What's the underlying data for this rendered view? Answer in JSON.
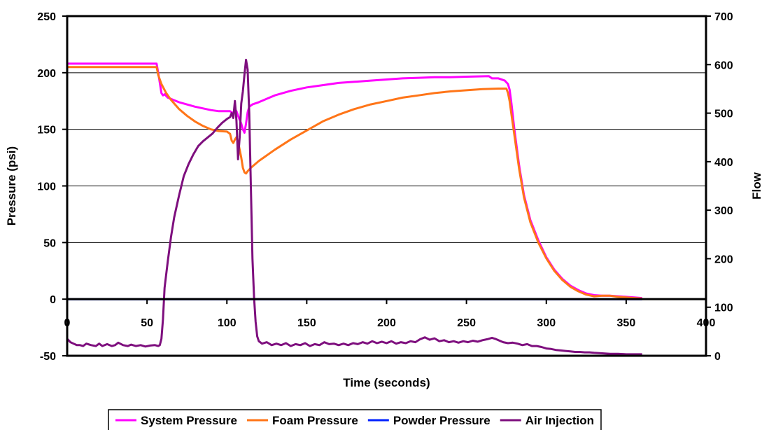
{
  "chart_data": {
    "type": "line",
    "title": "",
    "xlabel": "Time (seconds)",
    "ylabel": "Pressure (psi)",
    "y2label": "Flow",
    "xlim": [
      0,
      400
    ],
    "ylim": [
      -50,
      250
    ],
    "y2lim": [
      0,
      700
    ],
    "xticks": [
      "0",
      "50",
      "100",
      "150",
      "200",
      "250",
      "300",
      "350",
      "400"
    ],
    "yticks": [
      "-50",
      "0",
      "50",
      "100",
      "150",
      "200",
      "250"
    ],
    "y2ticks": [
      "0",
      "100",
      "200",
      "300",
      "400",
      "500",
      "600",
      "700"
    ],
    "grid": "horizontal",
    "legend_position": "bottom",
    "series": [
      {
        "name": "System Pressure",
        "color": "#ff00ff",
        "axis": "left",
        "points": [
          [
            0,
            208
          ],
          [
            56,
            208
          ],
          [
            57,
            200
          ],
          [
            59,
            182
          ],
          [
            60,
            180
          ],
          [
            61,
            181
          ],
          [
            63,
            178
          ],
          [
            70,
            174
          ],
          [
            80,
            170
          ],
          [
            90,
            167
          ],
          [
            95,
            166
          ],
          [
            102,
            166
          ],
          [
            104,
            164
          ],
          [
            105,
            168
          ],
          [
            106,
            166
          ],
          [
            107,
            162
          ],
          [
            109,
            155
          ],
          [
            110,
            150
          ],
          [
            111,
            147
          ],
          [
            112,
            155
          ],
          [
            113,
            165
          ],
          [
            114,
            170
          ],
          [
            116,
            172
          ],
          [
            120,
            174
          ],
          [
            130,
            180
          ],
          [
            140,
            184
          ],
          [
            150,
            187
          ],
          [
            160,
            189
          ],
          [
            170,
            191
          ],
          [
            180,
            192
          ],
          [
            190,
            193
          ],
          [
            200,
            194
          ],
          [
            210,
            195
          ],
          [
            220,
            195.5
          ],
          [
            230,
            196
          ],
          [
            240,
            196
          ],
          [
            250,
            196.5
          ],
          [
            264,
            197
          ],
          [
            266,
            195
          ],
          [
            270,
            195
          ],
          [
            274,
            193
          ],
          [
            276,
            190
          ],
          [
            277,
            185
          ],
          [
            278,
            175
          ],
          [
            280,
            150
          ],
          [
            283,
            118
          ],
          [
            286,
            92
          ],
          [
            290,
            70
          ],
          [
            295,
            52
          ],
          [
            300,
            37
          ],
          [
            305,
            26
          ],
          [
            310,
            18
          ],
          [
            315,
            12
          ],
          [
            320,
            8
          ],
          [
            325,
            5
          ],
          [
            330,
            3.5
          ],
          [
            335,
            3
          ],
          [
            340,
            3
          ],
          [
            345,
            2.5
          ],
          [
            350,
            2
          ],
          [
            355,
            1.5
          ],
          [
            360,
            1
          ]
        ]
      },
      {
        "name": "Foam Pressure",
        "color": "#ff7518",
        "axis": "left",
        "points": [
          [
            0,
            205
          ],
          [
            56,
            205
          ],
          [
            57,
            198
          ],
          [
            59,
            190
          ],
          [
            62,
            182
          ],
          [
            65,
            176
          ],
          [
            70,
            168
          ],
          [
            75,
            162
          ],
          [
            80,
            157
          ],
          [
            85,
            153
          ],
          [
            90,
            150
          ],
          [
            95,
            148.5
          ],
          [
            100,
            148
          ],
          [
            102,
            146
          ],
          [
            103,
            140
          ],
          [
            104,
            138
          ],
          [
            105,
            141
          ],
          [
            106,
            143
          ],
          [
            107,
            139
          ],
          [
            109,
            125
          ],
          [
            110,
            116
          ],
          [
            111,
            112
          ],
          [
            112,
            111
          ],
          [
            113,
            113
          ],
          [
            115,
            116
          ],
          [
            120,
            122
          ],
          [
            130,
            132
          ],
          [
            140,
            141
          ],
          [
            150,
            149
          ],
          [
            160,
            157
          ],
          [
            170,
            163
          ],
          [
            180,
            168
          ],
          [
            190,
            172
          ],
          [
            200,
            175
          ],
          [
            210,
            178
          ],
          [
            220,
            180
          ],
          [
            230,
            182
          ],
          [
            240,
            183.5
          ],
          [
            250,
            184.5
          ],
          [
            260,
            185.5
          ],
          [
            270,
            186
          ],
          [
            275,
            186
          ],
          [
            276,
            182
          ],
          [
            277,
            175
          ],
          [
            278,
            165
          ],
          [
            280,
            145
          ],
          [
            283,
            115
          ],
          [
            286,
            90
          ],
          [
            290,
            68
          ],
          [
            295,
            50
          ],
          [
            300,
            36
          ],
          [
            305,
            25
          ],
          [
            310,
            17
          ],
          [
            315,
            11
          ],
          [
            320,
            7
          ],
          [
            325,
            4
          ],
          [
            330,
            2.5
          ],
          [
            335,
            3
          ],
          [
            340,
            3
          ],
          [
            345,
            2
          ],
          [
            350,
            1.5
          ],
          [
            355,
            1
          ],
          [
            360,
            0.5
          ]
        ]
      },
      {
        "name": "Powder Pressure",
        "color": "#0022ff",
        "axis": "left",
        "points": [
          [
            0,
            0
          ],
          [
            360,
            0
          ]
        ]
      },
      {
        "name": "Air Injection",
        "color": "#7e0f7e",
        "axis": "right",
        "points": [
          [
            0,
            35
          ],
          [
            2,
            28
          ],
          [
            4,
            25
          ],
          [
            6,
            22
          ],
          [
            8,
            22
          ],
          [
            10,
            20
          ],
          [
            12,
            25
          ],
          [
            15,
            22
          ],
          [
            18,
            20
          ],
          [
            20,
            25
          ],
          [
            22,
            20
          ],
          [
            25,
            24
          ],
          [
            28,
            20
          ],
          [
            30,
            22
          ],
          [
            32,
            27
          ],
          [
            35,
            22
          ],
          [
            38,
            20
          ],
          [
            40,
            23
          ],
          [
            43,
            20
          ],
          [
            46,
            22
          ],
          [
            49,
            19
          ],
          [
            52,
            21
          ],
          [
            55,
            22
          ],
          [
            57,
            20
          ],
          [
            58,
            22
          ],
          [
            59,
            35
          ],
          [
            60,
            75
          ],
          [
            61,
            140
          ],
          [
            63,
            195
          ],
          [
            65,
            245
          ],
          [
            67,
            285
          ],
          [
            70,
            330
          ],
          [
            73,
            370
          ],
          [
            76,
            395
          ],
          [
            79,
            415
          ],
          [
            82,
            432
          ],
          [
            85,
            442
          ],
          [
            88,
            450
          ],
          [
            91,
            458
          ],
          [
            94,
            470
          ],
          [
            97,
            480
          ],
          [
            100,
            488
          ],
          [
            102,
            492
          ],
          [
            103,
            500
          ],
          [
            104,
            490
          ],
          [
            105,
            525
          ],
          [
            106,
            485
          ],
          [
            107,
            405
          ],
          [
            108,
            450
          ],
          [
            109,
            520
          ],
          [
            110,
            545
          ],
          [
            111,
            580
          ],
          [
            112,
            610
          ],
          [
            113,
            590
          ],
          [
            114,
            500
          ],
          [
            115,
            350
          ],
          [
            116,
            200
          ],
          [
            117,
            120
          ],
          [
            118,
            70
          ],
          [
            119,
            40
          ],
          [
            120,
            30
          ],
          [
            122,
            25
          ],
          [
            125,
            28
          ],
          [
            128,
            22
          ],
          [
            131,
            25
          ],
          [
            134,
            22
          ],
          [
            137,
            26
          ],
          [
            140,
            20
          ],
          [
            143,
            24
          ],
          [
            146,
            22
          ],
          [
            149,
            26
          ],
          [
            152,
            20
          ],
          [
            155,
            24
          ],
          [
            158,
            22
          ],
          [
            161,
            28
          ],
          [
            164,
            24
          ],
          [
            167,
            25
          ],
          [
            170,
            22
          ],
          [
            173,
            25
          ],
          [
            176,
            22
          ],
          [
            179,
            26
          ],
          [
            182,
            24
          ],
          [
            185,
            28
          ],
          [
            188,
            25
          ],
          [
            191,
            30
          ],
          [
            194,
            26
          ],
          [
            197,
            29
          ],
          [
            200,
            26
          ],
          [
            203,
            30
          ],
          [
            206,
            25
          ],
          [
            209,
            28
          ],
          [
            212,
            26
          ],
          [
            215,
            30
          ],
          [
            218,
            28
          ],
          [
            221,
            34
          ],
          [
            224,
            38
          ],
          [
            227,
            33
          ],
          [
            230,
            36
          ],
          [
            233,
            30
          ],
          [
            236,
            32
          ],
          [
            239,
            28
          ],
          [
            242,
            30
          ],
          [
            245,
            27
          ],
          [
            248,
            30
          ],
          [
            251,
            28
          ],
          [
            254,
            31
          ],
          [
            257,
            29
          ],
          [
            260,
            32
          ],
          [
            263,
            34
          ],
          [
            266,
            37
          ],
          [
            268,
            35
          ],
          [
            270,
            32
          ],
          [
            273,
            28
          ],
          [
            276,
            26
          ],
          [
            279,
            27
          ],
          [
            282,
            25
          ],
          [
            285,
            22
          ],
          [
            288,
            24
          ],
          [
            291,
            20
          ],
          [
            294,
            20
          ],
          [
            297,
            18
          ],
          [
            300,
            15
          ],
          [
            303,
            14
          ],
          [
            306,
            12
          ],
          [
            309,
            11
          ],
          [
            312,
            10
          ],
          [
            315,
            9
          ],
          [
            318,
            8
          ],
          [
            321,
            8
          ],
          [
            324,
            7
          ],
          [
            327,
            7
          ],
          [
            330,
            6
          ],
          [
            335,
            5
          ],
          [
            340,
            4
          ],
          [
            345,
            4
          ],
          [
            350,
            3
          ],
          [
            355,
            3
          ],
          [
            360,
            3
          ]
        ]
      }
    ]
  }
}
